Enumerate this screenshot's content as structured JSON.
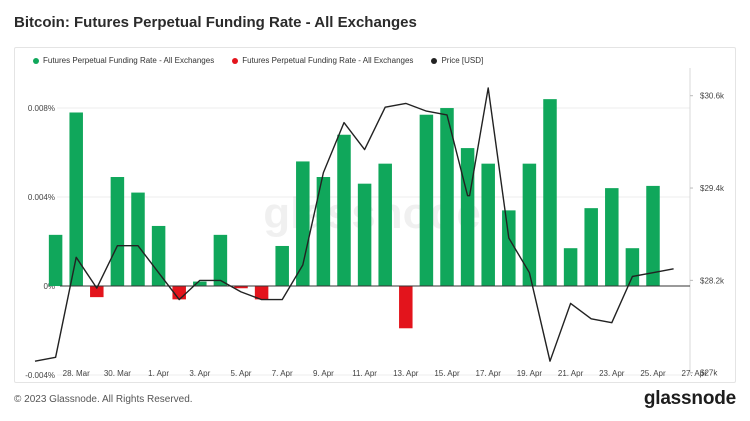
{
  "title": "Bitcoin: Futures Perpetual Funding Rate - All Exchanges",
  "footer": {
    "copyright": "© 2023 Glassnode. All Rights Reserved.",
    "logo": "glassnode",
    "watermark": "glassnode"
  },
  "colors": {
    "positive": "#10a75b",
    "negative": "#e3141c",
    "price": "#222222",
    "grid": "#ececec"
  },
  "chart_data": {
    "type": "bar",
    "title": "Bitcoin: Futures Perpetual Funding Rate - All Exchanges",
    "legend": [
      {
        "label": "Futures Perpetual Funding Rate - All Exchanges",
        "color": "#10a75b"
      },
      {
        "label": "Futures Perpetual Funding Rate - All Exchanges",
        "color": "#e3141c"
      },
      {
        "label": "Price [USD]",
        "color": "#222222"
      }
    ],
    "legend_position": "top-left",
    "grid": true,
    "y_left": {
      "ticks": [
        -0.004,
        0,
        0.004,
        0.008
      ],
      "tick_labels": [
        "-0.004%",
        "0%",
        "0.004%",
        "0.008%"
      ],
      "lim": [
        -0.004,
        0.0098
      ]
    },
    "y_right": {
      "ticks": [
        27000,
        28200,
        29400,
        30600
      ],
      "tick_labels": [
        "$27k",
        "$28.2k",
        "$29.4k",
        "$30.6k"
      ],
      "lim": [
        26970,
        30960
      ]
    },
    "x_tick_labels": [
      "28. Mar",
      "30. Mar",
      "1. Apr",
      "3. Apr",
      "5. Apr",
      "7. Apr",
      "9. Apr",
      "11. Apr",
      "13. Apr",
      "15. Apr",
      "17. Apr",
      "19. Apr",
      "21. Apr",
      "23. Apr",
      "25. Apr",
      "27. Apr"
    ],
    "funding_series": {
      "name": "Futures Perpetual Funding Rate - All Exchanges",
      "dates": [
        "2023-03-27",
        "2023-03-28",
        "2023-03-29",
        "2023-03-30",
        "2023-03-31",
        "2023-04-01",
        "2023-04-02",
        "2023-04-03",
        "2023-04-04",
        "2023-04-05",
        "2023-04-06",
        "2023-04-07",
        "2023-04-08",
        "2023-04-09",
        "2023-04-10",
        "2023-04-11",
        "2023-04-12",
        "2023-04-13",
        "2023-04-14",
        "2023-04-15",
        "2023-04-16",
        "2023-04-17",
        "2023-04-18",
        "2023-04-19",
        "2023-04-20",
        "2023-04-21",
        "2023-04-22",
        "2023-04-23",
        "2023-04-24",
        "2023-04-25",
        "2023-04-26"
      ],
      "values": [
        0.0023,
        0.0078,
        -0.0005,
        0.0049,
        0.0042,
        0.0027,
        -0.0006,
        0.0002,
        0.0023,
        -0.0001,
        -0.0006,
        0.0018,
        0.0056,
        0.0049,
        0.0068,
        0.0046,
        0.0055,
        -0.0019,
        0.0077,
        0.008,
        0.0062,
        0.0055,
        0.0034,
        0.0055,
        0.0084,
        0.0017,
        0.0035,
        0.0044,
        0.0017,
        0.0045,
        0.0
      ]
    },
    "price_series": {
      "name": "Price [USD]",
      "dates": [
        "2023-03-26",
        "2023-03-27",
        "2023-03-28",
        "2023-03-29",
        "2023-03-30",
        "2023-03-31",
        "2023-04-01",
        "2023-04-02",
        "2023-04-03",
        "2023-04-04",
        "2023-04-05",
        "2023-04-06",
        "2023-04-07",
        "2023-04-08",
        "2023-04-09",
        "2023-04-10",
        "2023-04-11",
        "2023-04-12",
        "2023-04-13",
        "2023-04-14",
        "2023-04-15",
        "2023-04-16",
        "2023-04-16",
        "2023-04-17",
        "2023-04-18",
        "2023-04-19",
        "2023-04-20",
        "2023-04-21",
        "2023-04-22",
        "2023-04-23",
        "2023-04-24",
        "2023-04-25",
        "2023-04-26"
      ],
      "values": [
        27150,
        27200,
        28500,
        28100,
        28650,
        28650,
        28300,
        27950,
        28200,
        28200,
        28050,
        27950,
        27950,
        28400,
        29600,
        30250,
        29900,
        30450,
        30500,
        30400,
        30350,
        29300,
        29300,
        30700,
        28750,
        28300,
        27150,
        27900,
        27700,
        27650,
        28250,
        28300,
        28350
      ]
    }
  }
}
